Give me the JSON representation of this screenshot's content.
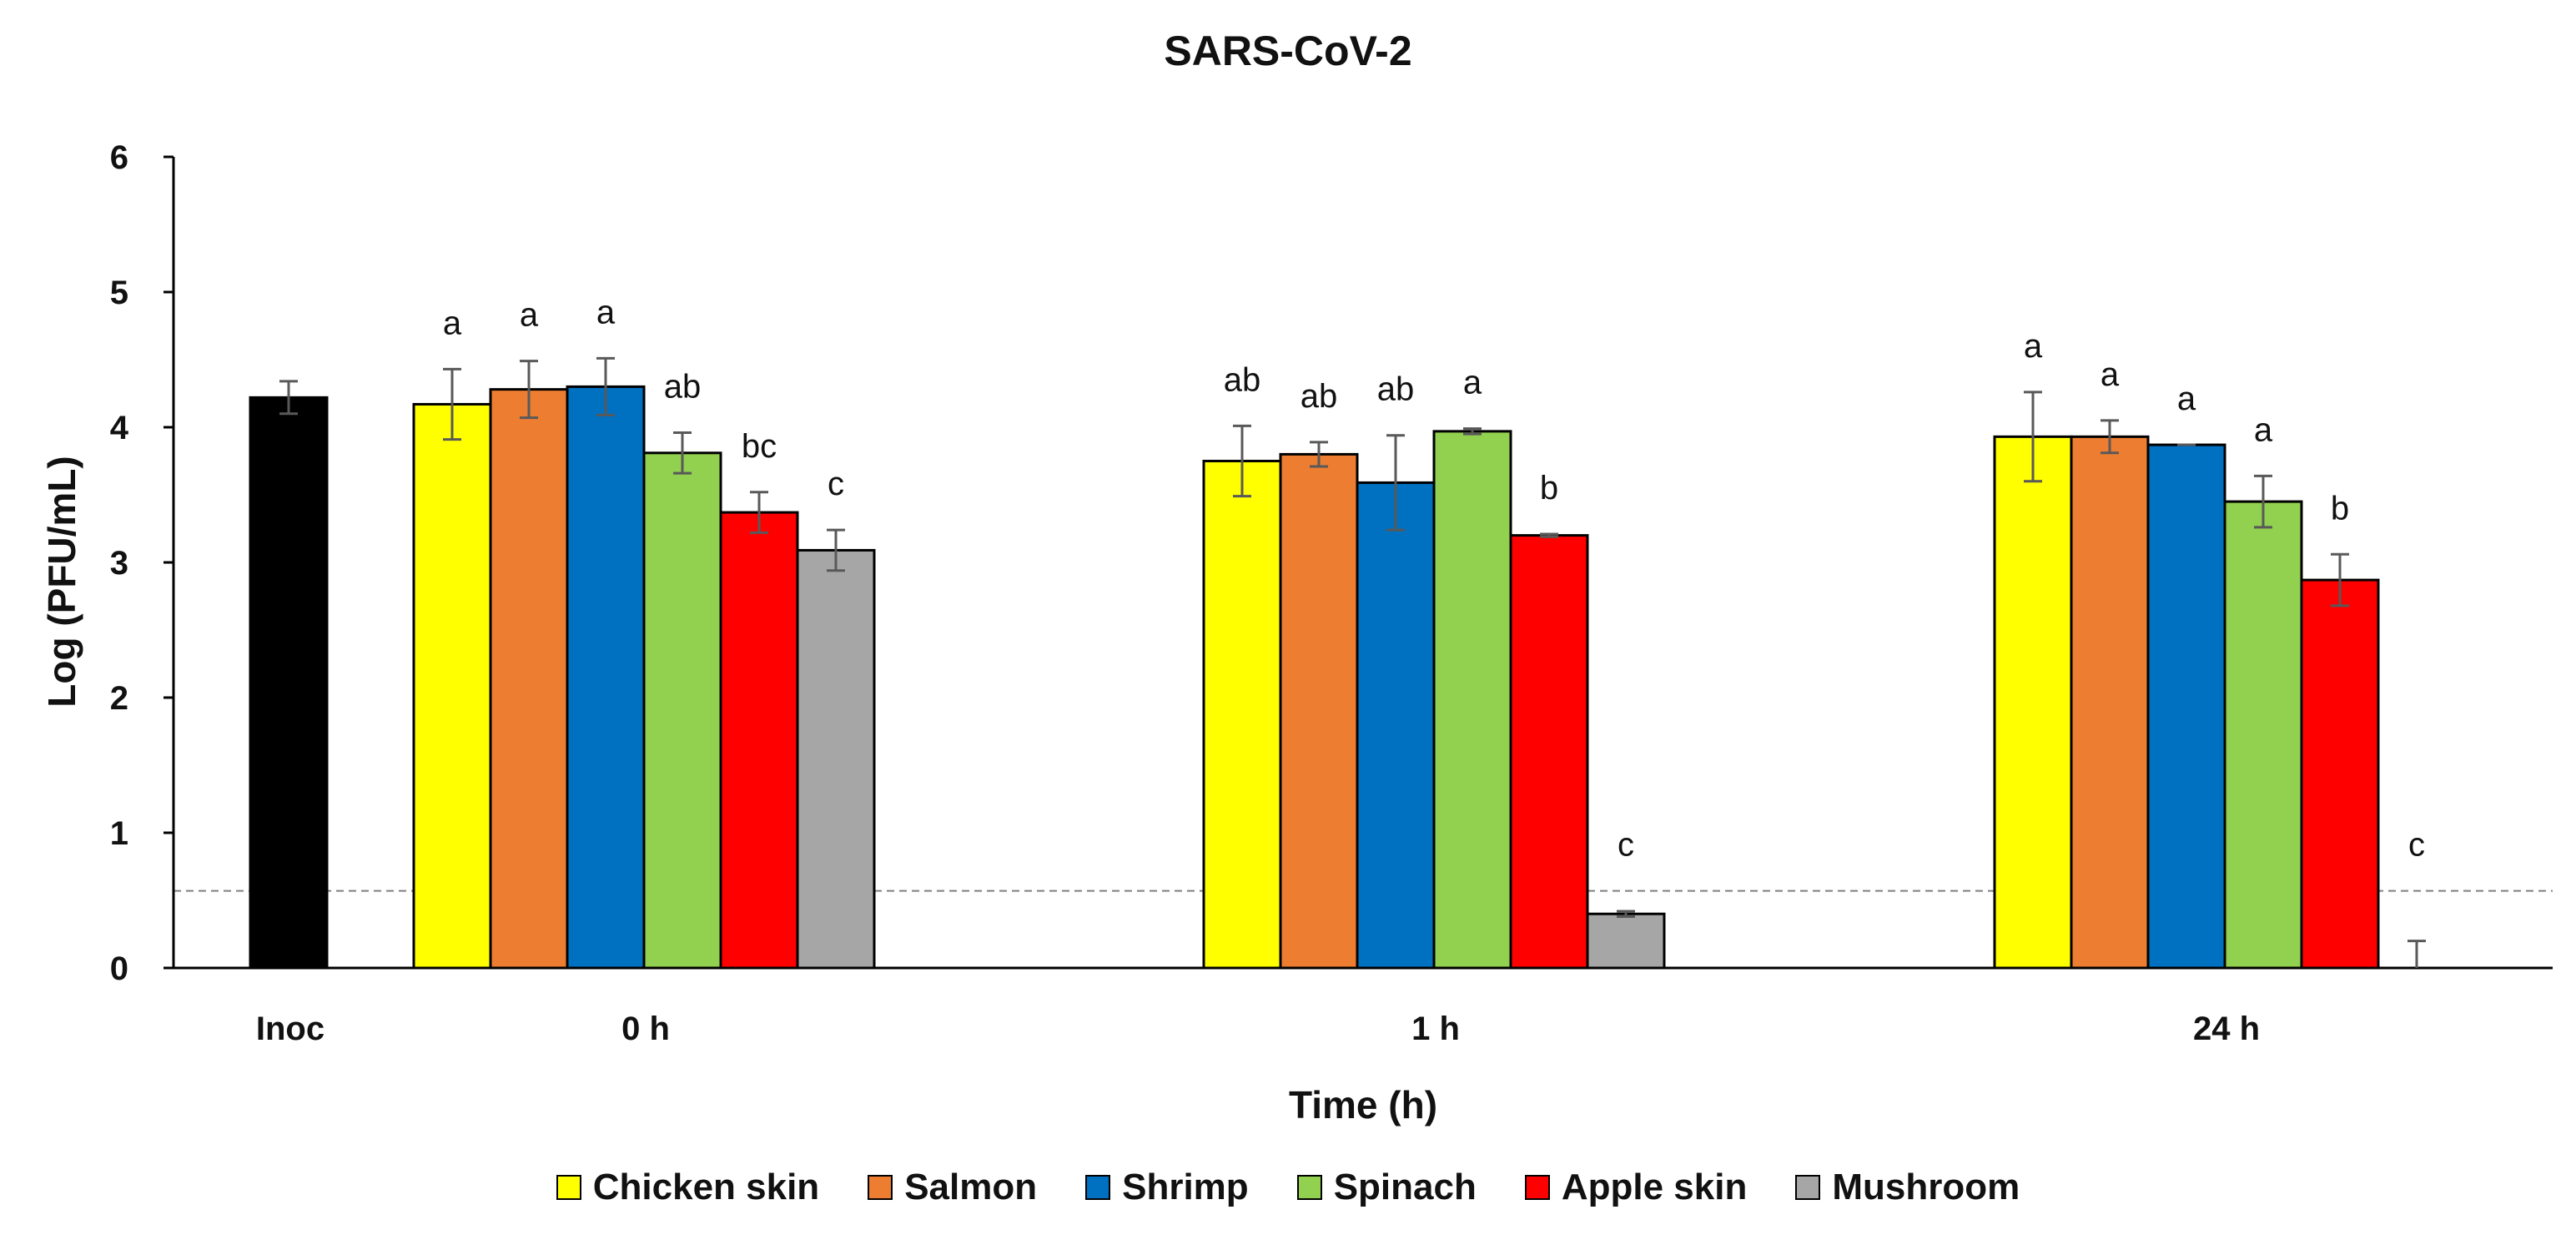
{
  "chart_data": {
    "type": "bar",
    "title": "SARS-CoV-2",
    "xlabel": "Time (h)",
    "ylabel": "Log (PFU/mL)",
    "ylim": [
      0,
      6
    ],
    "yticks": [
      0,
      1,
      2,
      3,
      4,
      5,
      6
    ],
    "detection_limit": 0.57,
    "inoculum": {
      "label": "Inoc",
      "value": 4.22,
      "error": 0.12,
      "color": "#000000"
    },
    "categories": [
      "0 h",
      "1 h",
      "24 h"
    ],
    "series": [
      {
        "name": "Chicken skin",
        "color": "#FFFF00",
        "values": [
          4.17,
          3.75,
          3.93
        ],
        "errors": [
          0.26,
          0.26,
          0.33
        ],
        "letters": [
          "a",
          "ab",
          "a"
        ]
      },
      {
        "name": "Salmon",
        "color": "#ED7D31",
        "values": [
          4.28,
          3.8,
          3.93
        ],
        "errors": [
          0.21,
          0.09,
          0.12
        ],
        "letters": [
          "a",
          "ab",
          "a"
        ]
      },
      {
        "name": "Shrimp",
        "color": "#0070C0",
        "values": [
          4.3,
          3.59,
          3.87
        ],
        "errors": [
          0.21,
          0.35,
          0.0
        ],
        "letters": [
          "a",
          "ab",
          "a"
        ]
      },
      {
        "name": "Spinach",
        "color": "#92D050",
        "values": [
          3.81,
          3.97,
          3.45
        ],
        "errors": [
          0.15,
          0.02,
          0.19
        ],
        "letters": [
          "ab",
          "a",
          "a"
        ]
      },
      {
        "name": "Apple skin",
        "color": "#FF0000",
        "values": [
          3.37,
          3.2,
          2.87
        ],
        "errors": [
          0.15,
          0.01,
          0.19
        ],
        "letters": [
          "bc",
          "b",
          "b"
        ]
      },
      {
        "name": "Mushroom",
        "color": "#A6A6A6",
        "values": [
          3.09,
          0.4,
          0.0
        ],
        "errors": [
          0.15,
          0.02,
          0.2
        ],
        "letters": [
          "c",
          "c",
          "c"
        ]
      }
    ]
  }
}
